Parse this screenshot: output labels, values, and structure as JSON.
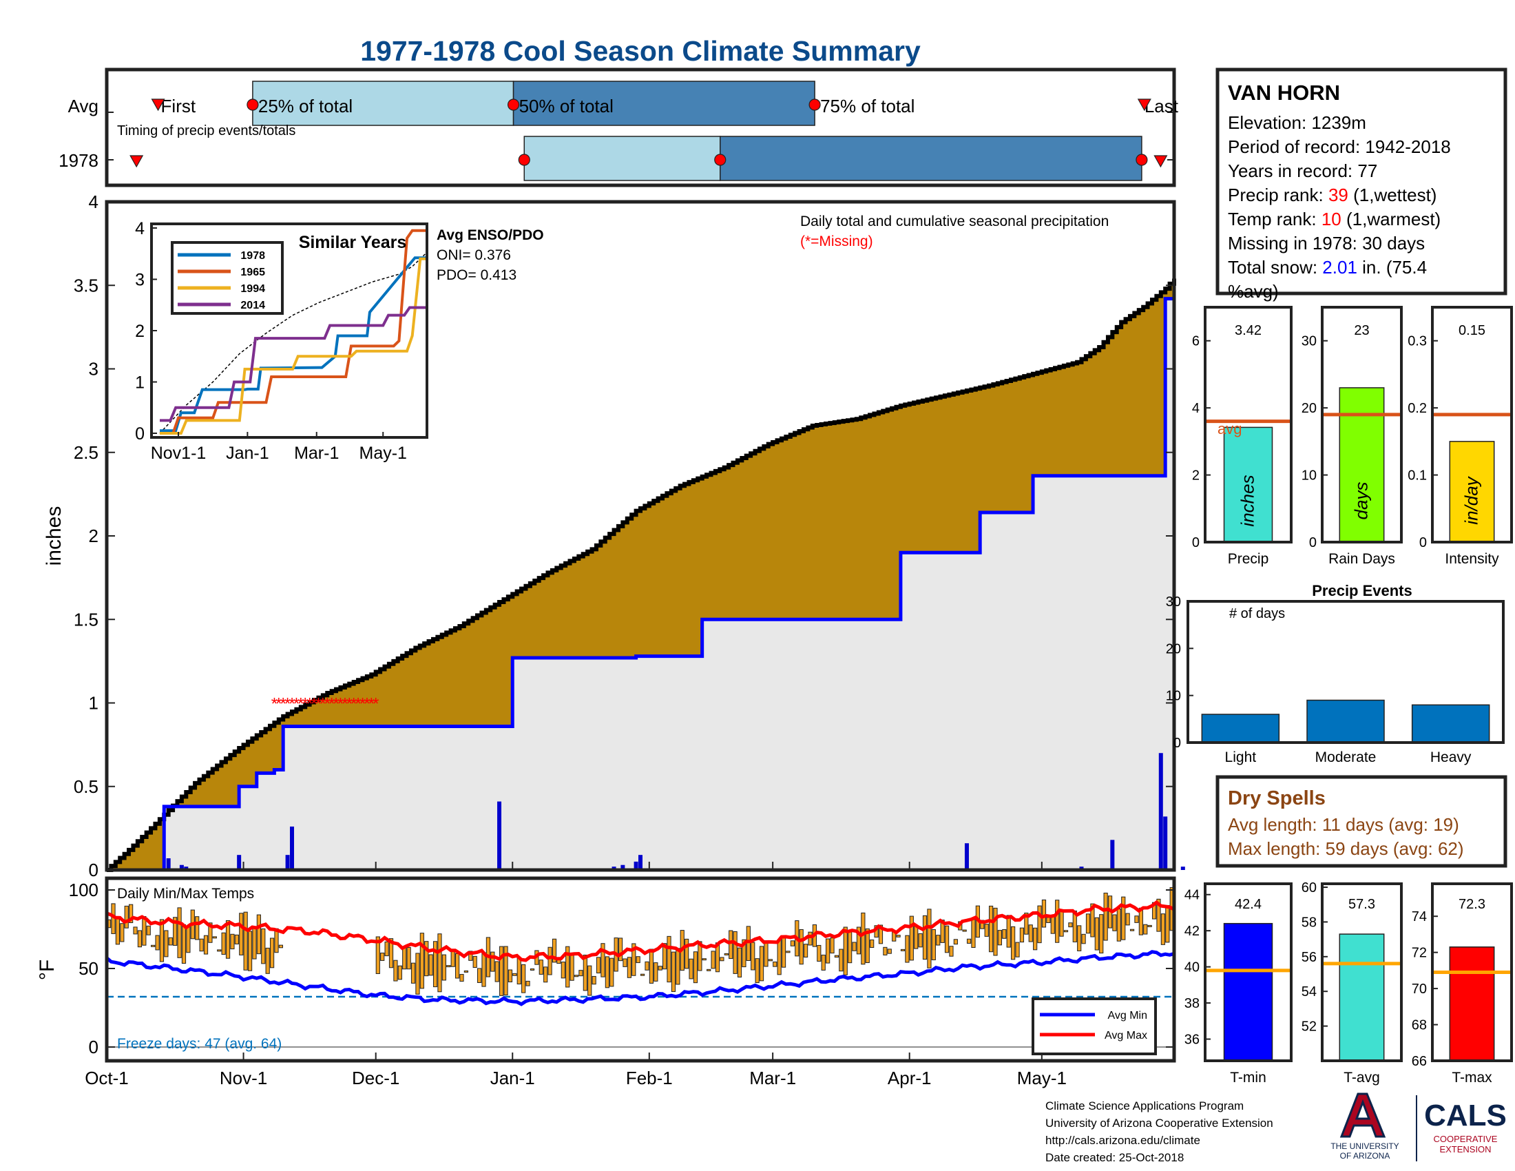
{
  "title": "1977-1978 Cool Season Climate Summary",
  "colors": {
    "title": "#0b4a8a",
    "light_bar": "#add8e6",
    "dark_bar": "#4682b4",
    "brown": "#b8860b",
    "avg_line": "#d95319",
    "temp_bar": "#f0a020",
    "blue_line": "#0000ff",
    "red_line": "#ff0000",
    "accent_red": "#ff0000",
    "dry_brown": "#8b4513"
  },
  "timing": {
    "row_labels": [
      "Avg",
      "1978"
    ],
    "caption": "Timing of precip events/totals",
    "avg_labels": {
      "first": "First",
      "p25": "25% of total",
      "p50": "50% of total",
      "p75": "75% of total",
      "last": "Last"
    },
    "avg_day": {
      "first": 8,
      "p25": 78,
      "p50": 271,
      "p75": 494,
      "last": 738
    },
    "y1978_day": {
      "first": -8,
      "p25": 279,
      "p50": 424,
      "p75": 736,
      "last": 750
    }
  },
  "station": {
    "name": "VAN HORN",
    "elevation_label": "Elevation: 1239m",
    "period_label": "Period of record: 1942-2018",
    "years_label": "Years in record: 77",
    "precip_rank_pre": "Precip rank: ",
    "precip_rank_val": "39",
    "precip_rank_post": " (1,wettest)",
    "temp_rank_pre": "Temp rank: ",
    "temp_rank_val": "10",
    "temp_rank_post": " (1,warmest)",
    "missing_label": "Missing in 1978: 30 days",
    "snow_pre": "Total snow: ",
    "snow_val": "2.01",
    "snow_post": " in. (75.4",
    "snow_line2": "%avg)"
  },
  "main_chart": {
    "caption": "Daily total and cumulative seasonal precipitation",
    "missing_note": "(*=Missing)",
    "ylabel": "inches",
    "yticks": [
      "0",
      "0.5",
      "1",
      "1.5",
      "2",
      "2.5",
      "3",
      "3.5",
      "4"
    ],
    "ylim": [
      0,
      4
    ],
    "xticks": [
      "Oct-1",
      "Nov-1",
      "Dec-1",
      "Jan-1",
      "Feb-1",
      "Mar-1",
      "Apr-1",
      "May-1"
    ],
    "xtick_days": [
      0,
      31,
      61,
      92,
      123,
      151,
      182,
      212
    ],
    "days_total": 242
  },
  "inset": {
    "title": "Similar Years",
    "yticks": [
      "0",
      "1",
      "2",
      "3",
      "4"
    ],
    "xticks": [
      "Nov1-1",
      "Jan-1",
      "Mar-1",
      "May-1"
    ],
    "legend": [
      "1978",
      "1965",
      "1994",
      "2014"
    ],
    "series_colors": [
      "#0072bd",
      "#d95319",
      "#edb120",
      "#7e2f8e"
    ],
    "enso_title": "Avg ENSO/PDO",
    "oni": "ONI= 0.376",
    "pdo": "PDO= 0.413"
  },
  "temp_chart": {
    "title": "Daily Min/Max Temps",
    "ylabel": "°F",
    "yticks": [
      "0",
      "50",
      "100"
    ],
    "freeze_label": "Freeze days: 47 (avg. 64)",
    "legend": [
      "Avg Min",
      "Avg Max"
    ]
  },
  "panels": {
    "precip": {
      "value": "3.42",
      "unit": "inches",
      "xlabel": "Precip",
      "avg_text": "avg",
      "yticks": [
        "0",
        "2",
        "4",
        "6"
      ]
    },
    "raindays": {
      "value": "23",
      "unit": "days",
      "xlabel": "Rain Days",
      "yticks": [
        "0",
        "10",
        "20",
        "30"
      ]
    },
    "intensity": {
      "value": "0.15",
      "unit": "in/day",
      "xlabel": "Intensity",
      "yticks": [
        "0",
        "0.1",
        "0.2",
        "0.3"
      ]
    }
  },
  "events": {
    "title": "Precip Events",
    "sublabel": "# of days",
    "yticks": [
      "0",
      "10",
      "20",
      "30"
    ],
    "categories": [
      "Light",
      "Moderate",
      "Heavy"
    ]
  },
  "dry_spells": {
    "title": "Dry Spells",
    "avg_label": "Avg length: 11 days (avg: 19)",
    "max_label": "Max length: 59 days (avg: 62)"
  },
  "temp_panels": {
    "tmin": {
      "value": "42.4",
      "xlabel": "T-min",
      "yticks": [
        "36",
        "38",
        "40",
        "42",
        "44"
      ]
    },
    "tavg": {
      "value": "57.3",
      "xlabel": "T-avg",
      "yticks": [
        "52",
        "54",
        "56",
        "58",
        "60"
      ]
    },
    "tmax": {
      "value": "72.3",
      "xlabel": "T-max",
      "yticks": [
        "66",
        "68",
        "70",
        "72",
        "74"
      ]
    }
  },
  "footer": {
    "line1": "Climate Science Applications Program",
    "line2": "University of Arizona Cooperative Extension",
    "line3": "http://cals.arizona.edu/climate",
    "line4": " Date created: 25-Oct-2018",
    "logo_ua": "THE UNIVERSITY OF ARIZONA",
    "logo_cals": "CALS",
    "logo_coop": "COOPERATIVE EXTENSION"
  },
  "chart_data": [
    {
      "type": "area",
      "title": "1977-1978 Cool Season Climate Summary",
      "ylabel": "inches",
      "ylim": [
        0,
        4
      ],
      "x_unit": "days since Oct-1",
      "cumulative_1978": {
        "x": [
          0,
          13,
          16,
          18,
          30,
          31,
          34,
          38,
          40,
          42,
          46,
          56,
          91,
          92,
          120,
          135,
          150,
          180,
          198,
          210,
          232,
          240,
          242
        ],
        "y": [
          0,
          0.38,
          0.38,
          0.38,
          0.5,
          0.5,
          0.58,
          0.6,
          0.86,
          0.86,
          0.86,
          0.86,
          0.86,
          1.27,
          1.28,
          1.5,
          1.5,
          1.9,
          2.14,
          2.36,
          2.36,
          3.42,
          3.42
        ]
      },
      "average_cumulative": {
        "x": [
          0,
          5,
          10,
          20,
          30,
          40,
          50,
          60,
          70,
          80,
          90,
          100,
          110,
          120,
          130,
          140,
          150,
          160,
          170,
          180,
          190,
          200,
          210,
          220,
          225,
          230,
          235,
          240,
          242
        ],
        "y": [
          0,
          0.12,
          0.25,
          0.52,
          0.73,
          0.92,
          1.06,
          1.17,
          1.33,
          1.46,
          1.62,
          1.78,
          1.92,
          2.15,
          2.3,
          2.41,
          2.55,
          2.66,
          2.7,
          2.78,
          2.84,
          2.9,
          2.97,
          3.04,
          3.13,
          3.28,
          3.37,
          3.48,
          3.54
        ]
      },
      "missing_days": {
        "x_start": 38,
        "x_end": 61,
        "y": 1.0
      },
      "daily_precip": [
        {
          "x": 14,
          "y": 0.07
        },
        {
          "x": 17,
          "y": 0.03
        },
        {
          "x": 18,
          "y": 0.02
        },
        {
          "x": 30,
          "y": 0.09
        },
        {
          "x": 41,
          "y": 0.09
        },
        {
          "x": 42,
          "y": 0.26
        },
        {
          "x": 89,
          "y": 0.41
        },
        {
          "x": 115,
          "y": 0.02
        },
        {
          "x": 117,
          "y": 0.03
        },
        {
          "x": 120,
          "y": 0.05
        },
        {
          "x": 121,
          "y": 0.09
        },
        {
          "x": 137,
          "y": 0.01
        },
        {
          "x": 152,
          "y": 0.01
        },
        {
          "x": 195,
          "y": 0.16
        },
        {
          "x": 221,
          "y": 0.02
        },
        {
          "x": 228,
          "y": 0.18
        },
        {
          "x": 239,
          "y": 0.7
        },
        {
          "x": 240,
          "y": 0.32
        },
        {
          "x": 244,
          "y": 0.02
        }
      ]
    },
    {
      "type": "line",
      "title": "Similar Years",
      "ylim": [
        0,
        4
      ],
      "series": [
        {
          "name": "1978",
          "x": [
            0,
            0.06,
            0.08,
            0.13,
            0.16,
            0.32,
            0.33,
            0.37,
            0.38,
            0.6,
            0.61,
            0.66,
            0.67,
            0.78,
            0.79,
            0.96,
            1.0
          ],
          "y": [
            0.05,
            0.05,
            0.4,
            0.4,
            0.85,
            0.85,
            0.86,
            0.86,
            1.27,
            1.28,
            1.28,
            1.5,
            1.9,
            1.9,
            2.36,
            3.42,
            3.42
          ]
        },
        {
          "name": "1965",
          "x": [
            0,
            0.05,
            0.07,
            0.2,
            0.22,
            0.4,
            0.42,
            0.7,
            0.72,
            0.88,
            0.9,
            0.93,
            0.95,
            1.0
          ],
          "y": [
            0.0,
            0.0,
            0.3,
            0.3,
            0.6,
            0.6,
            1.1,
            1.1,
            1.7,
            1.7,
            1.8,
            3.8,
            3.95,
            3.95
          ]
        },
        {
          "name": "1994",
          "x": [
            0,
            0.08,
            0.1,
            0.3,
            0.32,
            0.5,
            0.52,
            0.72,
            0.74,
            0.93,
            0.95,
            0.98,
            1.0
          ],
          "y": [
            0.0,
            0.0,
            0.25,
            0.25,
            1.25,
            1.25,
            1.5,
            1.5,
            1.6,
            1.6,
            1.9,
            3.4,
            3.4
          ]
        },
        {
          "name": "2014",
          "x": [
            0,
            0.04,
            0.06,
            0.26,
            0.28,
            0.34,
            0.36,
            0.62,
            0.64,
            0.84,
            0.86,
            0.92,
            0.94,
            1.0
          ],
          "y": [
            0.25,
            0.25,
            0.5,
            0.5,
            1.0,
            1.0,
            1.85,
            1.85,
            2.1,
            2.1,
            2.3,
            2.3,
            2.45,
            2.45
          ]
        }
      ],
      "avg_cumulative": {
        "x": [
          0,
          0.1,
          0.2,
          0.3,
          0.4,
          0.5,
          0.6,
          0.7,
          0.8,
          0.9,
          0.95,
          1.0
        ],
        "y": [
          0,
          0.55,
          1.0,
          1.55,
          1.95,
          2.3,
          2.55,
          2.75,
          2.95,
          3.1,
          3.25,
          3.5
        ]
      }
    },
    {
      "type": "line",
      "title": "Daily Min/Max Temps",
      "ylabel": "°F",
      "ylim": [
        0,
        100
      ],
      "freeze_threshold": 32,
      "avg_max": {
        "x": [
          0,
          15,
          30,
          45,
          61,
          75,
          92,
          105,
          123,
          140,
          151,
          165,
          182,
          195,
          212,
          225,
          242
        ],
        "y": [
          83,
          79,
          77,
          74,
          68,
          62,
          57,
          58,
          62,
          66,
          68,
          72,
          76,
          80,
          84,
          88,
          90
        ]
      },
      "avg_min": {
        "x": [
          0,
          15,
          30,
          45,
          61,
          75,
          92,
          105,
          123,
          140,
          151,
          165,
          182,
          195,
          212,
          225,
          242
        ],
        "y": [
          55,
          50,
          45,
          39,
          33,
          30,
          29,
          30,
          32,
          36,
          39,
          43,
          47,
          51,
          54,
          57,
          60
        ]
      }
    },
    {
      "type": "bar",
      "title": "Precip Events",
      "categories": [
        "Light",
        "Moderate",
        "Heavy"
      ],
      "values": [
        6,
        9,
        8
      ],
      "ylim": [
        0,
        30
      ]
    },
    {
      "type": "bar",
      "categories": [
        "Precip",
        "Rain Days",
        "Intensity"
      ],
      "values": [
        3.42,
        23,
        0.15
      ],
      "averages": [
        3.6,
        19,
        0.19
      ]
    },
    {
      "type": "bar",
      "categories": [
        "T-min",
        "T-avg",
        "T-max"
      ],
      "values": [
        42.4,
        57.3,
        72.3
      ],
      "averages": [
        39.8,
        55.6,
        70.9
      ]
    }
  ]
}
